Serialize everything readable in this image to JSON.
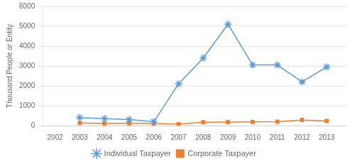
{
  "chart_data": {
    "type": "line",
    "x": [
      2003,
      2004,
      2005,
      2006,
      2007,
      2008,
      2009,
      2010,
      2011,
      2012,
      2013
    ],
    "series": [
      {
        "name": "Individual Taxpayer",
        "color": "#5B9BD5",
        "marker": "star",
        "values": [
          400,
          350,
          300,
          200,
          2100,
          3400,
          5100,
          3050,
          3050,
          2200,
          2950
        ]
      },
      {
        "name": "Corporate Taxpayer",
        "color": "#ED7D31",
        "marker": "square",
        "values": [
          130,
          110,
          115,
          110,
          70,
          170,
          175,
          185,
          195,
          280,
          230
        ]
      }
    ],
    "ylabel": "Thousand People or Entity",
    "xlim": [
      2001.5,
      2013.8
    ],
    "xticks": [
      2002,
      2003,
      2004,
      2005,
      2006,
      2007,
      2008,
      2009,
      2010,
      2011,
      2012,
      2013
    ],
    "ylim": [
      0,
      6000
    ],
    "yticks": [
      0,
      1000,
      2000,
      3000,
      4000,
      5000,
      6000
    ],
    "grid": "y",
    "legend": "bottom"
  }
}
